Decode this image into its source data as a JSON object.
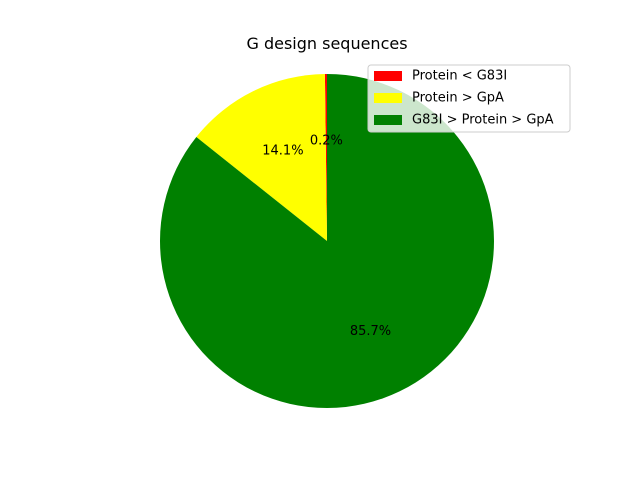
{
  "chart_data": {
    "type": "pie",
    "title": "G design sequences",
    "legend_placement": "top-right",
    "start_angle_deg": 90,
    "direction": "counterclockwise",
    "slices": [
      {
        "label": "Protein < G83I",
        "value": 0.2,
        "pct_label": "0.2%",
        "color": "#ff0000"
      },
      {
        "label": "Protein > GpA",
        "value": 14.1,
        "pct_label": "14.1%",
        "color": "#ffff00"
      },
      {
        "label": "G83I > Protein > GpA",
        "value": 85.7,
        "pct_label": "85.7%",
        "color": "#008000"
      }
    ]
  }
}
